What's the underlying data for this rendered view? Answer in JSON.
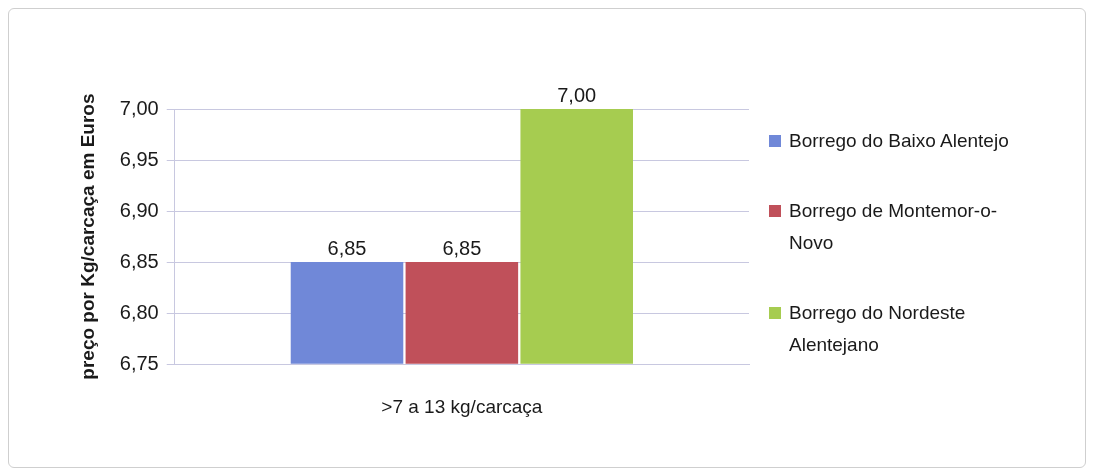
{
  "chart_data": {
    "type": "bar",
    "categories": [
      ">7 a 13 kg/carcaça"
    ],
    "ylabel": "preço por Kg/carcaça em Euros",
    "series": [
      {
        "name": "Borrego do Baixo Alentejo",
        "color": "#7088d8",
        "values": [
          6.85
        ],
        "value_labels": [
          "6,85"
        ]
      },
      {
        "name": "Borrego de Montemor-o-Novo",
        "color": "#c0505a",
        "values": [
          6.85
        ],
        "value_labels": [
          "6,85"
        ]
      },
      {
        "name": "Borrego do Nordeste Alentejano",
        "color": "#a6cc50",
        "values": [
          7.0
        ],
        "value_labels": [
          "7,00"
        ]
      }
    ],
    "ylim": [
      6.75,
      7.0
    ],
    "yticks": [
      {
        "value": 6.75,
        "label": "6,75"
      },
      {
        "value": 6.8,
        "label": "6,80"
      },
      {
        "value": 6.85,
        "label": "6,85"
      },
      {
        "value": 6.9,
        "label": "6,90"
      },
      {
        "value": 6.95,
        "label": "6,95"
      },
      {
        "value": 7.0,
        "label": "7,00"
      }
    ],
    "grid": "y",
    "legend": "right"
  }
}
